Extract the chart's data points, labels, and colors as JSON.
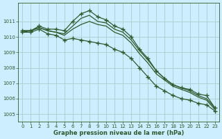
{
  "title": "Graphe pression niveau de la mer (hPa)",
  "bg_color": "#cceeff",
  "grid_color": "#aacccc",
  "line_color": "#2d5a2d",
  "ylim": [
    1004.5,
    1012.2
  ],
  "yticks": [
    1005,
    1006,
    1007,
    1008,
    1009,
    1010,
    1011
  ],
  "xlim": [
    -0.5,
    23.5
  ],
  "xticks": [
    0,
    1,
    2,
    3,
    4,
    5,
    6,
    7,
    8,
    9,
    10,
    11,
    12,
    13,
    14,
    15,
    16,
    17,
    18,
    19,
    20,
    21,
    22,
    23
  ],
  "series": [
    [
      1010.4,
      1010.4,
      1010.7,
      1010.5,
      1010.5,
      1010.4,
      1011.0,
      1011.5,
      1011.7,
      1011.3,
      1011.1,
      1010.7,
      1010.5,
      1010.0,
      1009.2,
      1008.6,
      1007.8,
      1007.3,
      1006.9,
      1006.7,
      1006.6,
      1006.3,
      1006.2,
      1005.4
    ],
    [
      1010.4,
      1010.4,
      1010.6,
      1010.4,
      1010.3,
      1010.2,
      1010.7,
      1011.2,
      1011.4,
      1011.0,
      1010.9,
      1010.5,
      1010.3,
      1009.8,
      1009.1,
      1008.5,
      1007.8,
      1007.3,
      1006.9,
      1006.7,
      1006.5,
      1006.2,
      1006.0,
      1005.4
    ],
    [
      1010.3,
      1010.4,
      1010.6,
      1010.4,
      1010.3,
      1010.1,
      1010.5,
      1010.8,
      1011.0,
      1010.8,
      1010.7,
      1010.3,
      1010.1,
      1009.6,
      1008.9,
      1008.3,
      1007.6,
      1007.2,
      1006.8,
      1006.6,
      1006.4,
      1006.1,
      1005.9,
      1005.3
    ],
    [
      1010.3,
      1010.3,
      1010.5,
      1010.2,
      1010.1,
      1009.8,
      1009.9,
      1009.8,
      1009.7,
      1009.6,
      1009.5,
      1009.2,
      1009.0,
      1008.6,
      1008.0,
      1007.4,
      1006.8,
      1006.5,
      1006.2,
      1006.0,
      1005.9,
      1005.7,
      1005.6,
      1005.2
    ]
  ],
  "markers": [
    0,
    3
  ],
  "figsize": [
    3.2,
    2.0
  ],
  "dpi": 100
}
